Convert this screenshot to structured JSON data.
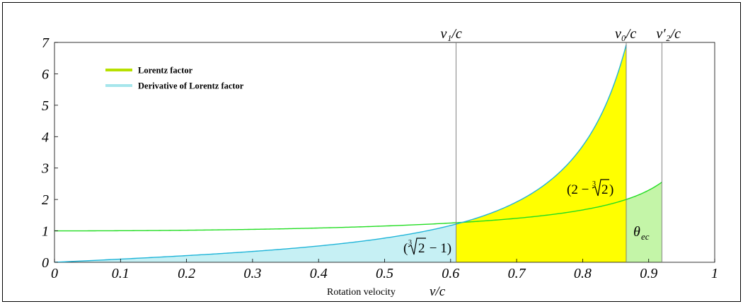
{
  "chart_data": {
    "type": "area",
    "xlabel_text": "Rotation velocity",
    "xlabel_var": "v/c",
    "xlim": [
      0,
      1
    ],
    "ylim": [
      0,
      7
    ],
    "x_ticks": [
      "0",
      "0.1",
      "0.2",
      "0.3",
      "0.4",
      "0.5",
      "0.6",
      "0.7",
      "0.8",
      "0.9",
      "1"
    ],
    "x_tick_values": [
      0,
      0.1,
      0.2,
      0.3,
      0.4,
      0.5,
      0.6,
      0.7,
      0.8,
      0.9,
      1
    ],
    "y_ticks": [
      "0",
      "1",
      "2",
      "3",
      "4",
      "5",
      "6",
      "7"
    ],
    "y_tick_values": [
      0,
      1,
      2,
      3,
      4,
      5,
      6,
      7
    ],
    "legend": {
      "placement": "top-left",
      "items": [
        {
          "label": "Lorentz factor",
          "color": "#b7e000"
        },
        {
          "label": "Derivative of Lorentz factor",
          "color": "#a6e6ec"
        }
      ]
    },
    "series": [
      {
        "key": "lorentz",
        "function": "1/sqrt(1-x^2)",
        "x_range": [
          0,
          0.92
        ],
        "color": "#22dd22"
      },
      {
        "key": "derivative",
        "function": "x/(1-x^2)^1.5",
        "x_range": [
          0,
          0.866
        ],
        "color": "#1fb4d8"
      }
    ],
    "reference_lines": [
      {
        "label": "v₁/c",
        "x": 0.6083
      },
      {
        "label": "v₀/c",
        "x": 0.866
      },
      {
        "label": "v′₂/c",
        "x": 0.92
      }
    ],
    "regions": [
      {
        "x_range": [
          0,
          0.6083
        ],
        "under": "derivative",
        "color": "#c6f0f4",
        "label_text": "(∛2 − 1)"
      },
      {
        "x_range": [
          0.6083,
          0.866
        ],
        "under": "derivative",
        "color": "#ffff00",
        "label_text": "(2 − ∛2)"
      },
      {
        "x_range": [
          0.866,
          0.92
        ],
        "under": "lorentz",
        "color": "#c4f5a8",
        "label_text": "θec"
      }
    ],
    "annotation_theta": {
      "base": "θ",
      "sub": "ec"
    },
    "annotation_cube1": {
      "open": "(",
      "index": "3",
      "radicand": "2",
      "rest": " − 1)"
    },
    "annotation_cube2": {
      "open": "(2 − ",
      "index": "3",
      "radicand": "2",
      "close": ")"
    }
  }
}
